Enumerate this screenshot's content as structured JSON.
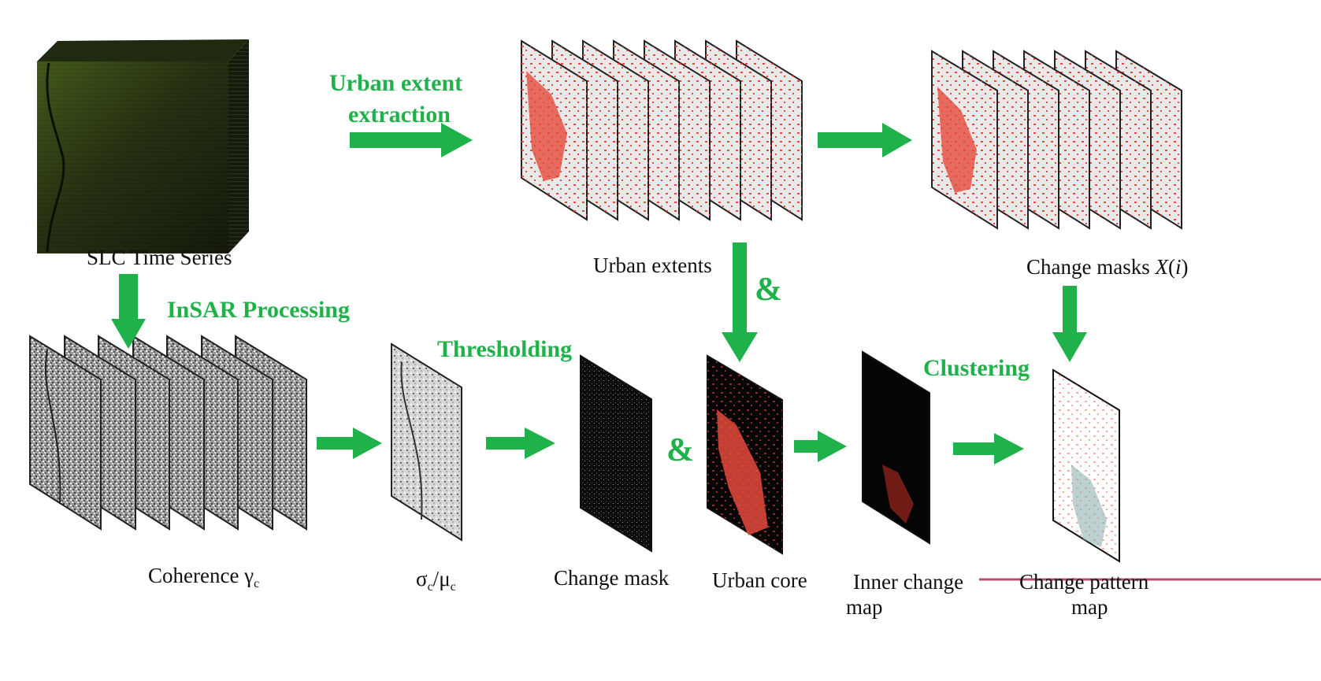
{
  "colors": {
    "arrow": "#1fb24a",
    "urban_red": "#e64a3c",
    "line_mark": "#b4506e"
  },
  "inputs": {
    "slc_label": "SLC Time Series"
  },
  "steps": {
    "urban_extent_line1": "Urban extent",
    "urban_extent_line2": "extraction",
    "insar": "InSAR Processing",
    "thresholding": "Thresholding",
    "clustering": "Clustering"
  },
  "operators": {
    "and_symbol": "&"
  },
  "outputs": {
    "urban_extents": "Urban extents",
    "change_masks_prefix": "Change masks ",
    "change_masks_var": "X",
    "change_masks_open": "(",
    "change_masks_index": "i",
    "change_masks_close": ")",
    "coherence_text": "Coherence γ",
    "coherence_sub": "c",
    "sigma": "σ",
    "sigma_sub": "c",
    "divide": "/",
    "mu": "μ",
    "mu_sub": "c",
    "change_mask": "Change mask",
    "urban_core": "Urban core",
    "inner_change_line1": "Inner change",
    "inner_change_line2": "map",
    "change_pattern_line1": "Change pattern",
    "change_pattern_line2": "map"
  }
}
